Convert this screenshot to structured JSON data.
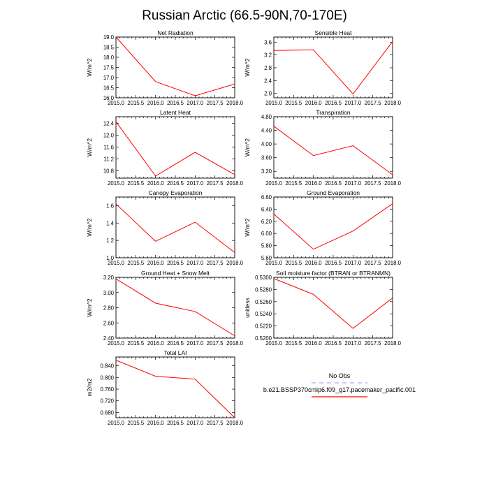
{
  "figure": {
    "title": "Russian Arctic (66.5-90N,70-170E)"
  },
  "legend": {
    "obs_label": "No Obs",
    "obs_color": "#aaaaee",
    "model_label": "b.e21.BSSP370cmip6.f09_g17.pacemaker_pacific.001",
    "model_color": "#ff0000"
  },
  "chart_data": [
    {
      "type": "line",
      "title": "Net Radiation",
      "xlabel": "",
      "ylabel": "W/m^2",
      "x": [
        2015,
        2016,
        2017,
        2018
      ],
      "y": [
        19.0,
        16.8,
        16.1,
        16.68
      ],
      "xlim": [
        2015,
        2018
      ],
      "ylim": [
        16.0,
        19.0
      ],
      "xticks": [
        "2015.0",
        "2015.5",
        "2016.0",
        "2016.5",
        "2017.0",
        "2017.5",
        "2018.0"
      ],
      "yticks": [
        "16.0",
        "16.5",
        "17.0",
        "17.5",
        "18.0",
        "18.5",
        "19.0"
      ],
      "ytick_values": [
        16.0,
        16.5,
        17.0,
        17.5,
        18.0,
        18.5,
        19.0
      ]
    },
    {
      "type": "line",
      "title": "Sensible Heat",
      "xlabel": "",
      "ylabel": "W/m^2",
      "x": [
        2015,
        2016,
        2017,
        2018
      ],
      "y": [
        3.34,
        3.36,
        1.98,
        3.62
      ],
      "xlim": [
        2015,
        2018
      ],
      "ylim": [
        1.86,
        3.76
      ],
      "xticks": [
        "2015.0",
        "2015.5",
        "2016.0",
        "2016.5",
        "2017.0",
        "2017.5",
        "2018.0"
      ],
      "yticks": [
        "2.0",
        "2.4",
        "2.8",
        "3.2",
        "3.6"
      ],
      "ytick_values": [
        2.0,
        2.4,
        2.8,
        3.2,
        3.6
      ]
    },
    {
      "type": "line",
      "title": "Latent Heat",
      "xlabel": "",
      "ylabel": "W/m^2",
      "x": [
        2015,
        2016,
        2017,
        2018
      ],
      "y": [
        12.45,
        10.62,
        11.42,
        10.67
      ],
      "xlim": [
        2015,
        2018
      ],
      "ylim": [
        10.55,
        12.62
      ],
      "xticks": [
        "2015.0",
        "2015.5",
        "2016.0",
        "2016.5",
        "2017.0",
        "2017.5",
        "2018.0"
      ],
      "yticks": [
        "10.8",
        "11.2",
        "11.6",
        "12.0",
        "12.4"
      ],
      "ytick_values": [
        10.8,
        11.2,
        11.6,
        12.0,
        12.4
      ]
    },
    {
      "type": "line",
      "title": "Transpiration",
      "xlabel": "",
      "ylabel": "W/m^2",
      "x": [
        2015,
        2016,
        2017,
        2018
      ],
      "y": [
        4.52,
        3.66,
        3.95,
        3.1
      ],
      "xlim": [
        2015,
        2018
      ],
      "ylim": [
        3.0,
        4.8
      ],
      "xticks": [
        "2015.0",
        "2015.5",
        "2016.0",
        "2016.5",
        "2017.0",
        "2017.5",
        "2018.0"
      ],
      "yticks": [
        "3.20",
        "3.60",
        "4.00",
        "4.40",
        "4.80"
      ],
      "ytick_values": [
        3.2,
        3.6,
        4.0,
        4.4,
        4.8
      ]
    },
    {
      "type": "line",
      "title": "Canopy Evaporation",
      "xlabel": "",
      "ylabel": "W/m^2",
      "x": [
        2015,
        2016,
        2017,
        2018
      ],
      "y": [
        1.62,
        1.19,
        1.41,
        1.06
      ],
      "xlim": [
        2015,
        2018
      ],
      "ylim": [
        1.0,
        1.7
      ],
      "xticks": [
        "2015.0",
        "2015.5",
        "2016.0",
        "2016.5",
        "2017.0",
        "2017.5",
        "2018.0"
      ],
      "yticks": [
        "1.0",
        "1.2",
        "1.4",
        "1.6"
      ],
      "ytick_values": [
        1.0,
        1.2,
        1.4,
        1.6
      ]
    },
    {
      "type": "line",
      "title": "Ground Evaporation",
      "xlabel": "",
      "ylabel": "W/m^2",
      "x": [
        2015,
        2016,
        2017,
        2018
      ],
      "y": [
        6.32,
        5.74,
        6.04,
        6.49
      ],
      "xlim": [
        2015,
        2018
      ],
      "ylim": [
        5.6,
        6.6
      ],
      "xticks": [
        "2015.0",
        "2015.5",
        "2016.0",
        "2016.5",
        "2017.0",
        "2017.5",
        "2018.0"
      ],
      "yticks": [
        "5.60",
        "5.80",
        "6.00",
        "6.20",
        "6.40",
        "6.60"
      ],
      "ytick_values": [
        5.6,
        5.8,
        6.0,
        6.2,
        6.4,
        6.6
      ]
    },
    {
      "type": "line",
      "title": "Ground Heat + Snow Melt",
      "xlabel": "",
      "ylabel": "W/m^2",
      "x": [
        2015,
        2016,
        2017,
        2018
      ],
      "y": [
        3.18,
        2.86,
        2.75,
        2.43
      ],
      "xlim": [
        2015,
        2018
      ],
      "ylim": [
        2.4,
        3.2
      ],
      "xticks": [
        "2015.0",
        "2015.5",
        "2016.0",
        "2016.5",
        "2017.0",
        "2017.5",
        "2018.0"
      ],
      "yticks": [
        "2.40",
        "2.60",
        "2.80",
        "3.00",
        "3.20"
      ],
      "ytick_values": [
        2.4,
        2.6,
        2.8,
        3.0,
        3.2
      ]
    },
    {
      "type": "line",
      "title": "Soil moisture factor (BTRAN or BTRANMN)",
      "xlabel": "",
      "ylabel": "unitless",
      "x": [
        2015,
        2016,
        2017,
        2018
      ],
      "y": [
        0.5298,
        0.5272,
        0.5216,
        0.5266
      ],
      "xlim": [
        2015,
        2018
      ],
      "ylim": [
        0.52,
        0.53
      ],
      "xticks": [
        "2015.0",
        "2015.5",
        "2016.0",
        "2016.5",
        "2017.0",
        "2017.5",
        "2018.0"
      ],
      "yticks": [
        "0.5200",
        "0.5220",
        "0.5240",
        "0.5260",
        "0.5280",
        "0.5300"
      ],
      "ytick_values": [
        0.52,
        0.522,
        0.524,
        0.526,
        0.528,
        0.53
      ]
    },
    {
      "type": "line",
      "title": "Total LAI",
      "xlabel": "",
      "ylabel": "m2/m2",
      "x": [
        2015,
        2016,
        2017,
        2018
      ],
      "y": [
        0.859,
        0.804,
        0.794,
        0.662
      ],
      "xlim": [
        2015,
        2018
      ],
      "ylim": [
        0.662,
        0.87
      ],
      "xticks": [
        "2015.0",
        "2015.5",
        "2016.0",
        "2016.5",
        "2017.0",
        "2017.5",
        "2018.0"
      ],
      "yticks": [
        "0.680",
        "0.720",
        "0.760",
        "0.800",
        "0.840"
      ],
      "ytick_values": [
        0.68,
        0.72,
        0.76,
        0.8,
        0.84
      ]
    }
  ]
}
